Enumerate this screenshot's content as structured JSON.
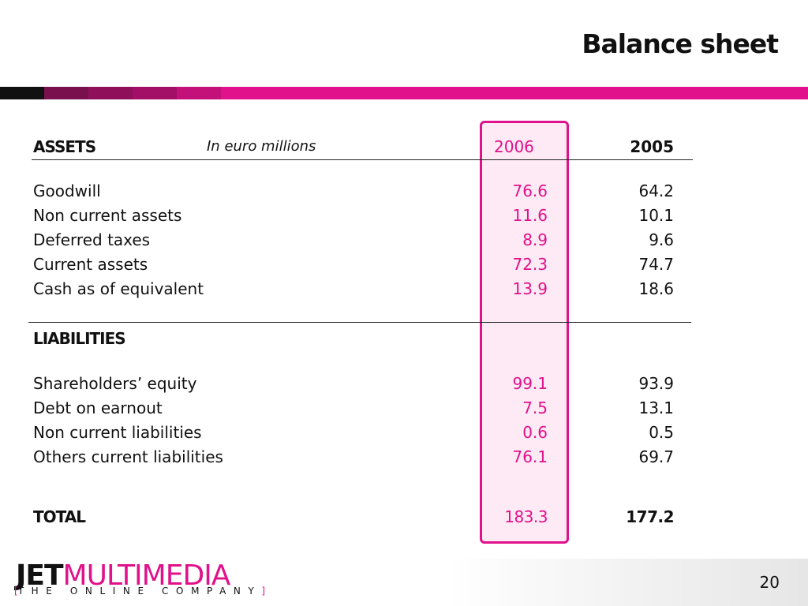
{
  "slide": {
    "title": "Balance sheet",
    "page_number": "20"
  },
  "stripe_colors": [
    "#111111",
    "#7a0f4d",
    "#8f0f5b",
    "#a30f67",
    "#c41079",
    "#e0118a"
  ],
  "accent_color": "#e0118a",
  "table": {
    "assets_header": "ASSETS",
    "unit_note": "In euro millions",
    "col_2006": "2006",
    "col_2005": "2005",
    "assets_rows": [
      {
        "label": "Goodwill",
        "v2006": "76.6",
        "v2005": "64.2"
      },
      {
        "label": "Non current assets",
        "v2006": "11.6",
        "v2005": "10.1"
      },
      {
        "label": "Deferred taxes",
        "v2006": "8.9",
        "v2005": "9.6"
      },
      {
        "label": "Current assets",
        "v2006": "72.3",
        "v2005": "74.7"
      },
      {
        "label": "Cash as of equivalent",
        "v2006": "13.9",
        "v2005": "18.6"
      }
    ],
    "liabilities_header": "LIABILITIES",
    "liabilities_rows": [
      {
        "label": "Shareholders’ equity",
        "v2006": "99.1",
        "v2005": "93.9"
      },
      {
        "label": "Debt on earnout",
        "v2006": "7.5",
        "v2005": "13.1"
      },
      {
        "label": "Non current liabilities",
        "v2006": "0.6",
        "v2005": "0.5"
      },
      {
        "label": "Others current liabilities",
        "v2006": "76.1",
        "v2005": "69.7"
      }
    ],
    "total": {
      "label": "TOTAL",
      "v2006": "183.3",
      "v2005": "177.2"
    }
  },
  "logo": {
    "jet": "JET",
    "multimedia": "MULTIMEDIA",
    "bracket_open": "[",
    "tagline": "THE ONLINE COMPANY",
    "bracket_close": "]"
  }
}
